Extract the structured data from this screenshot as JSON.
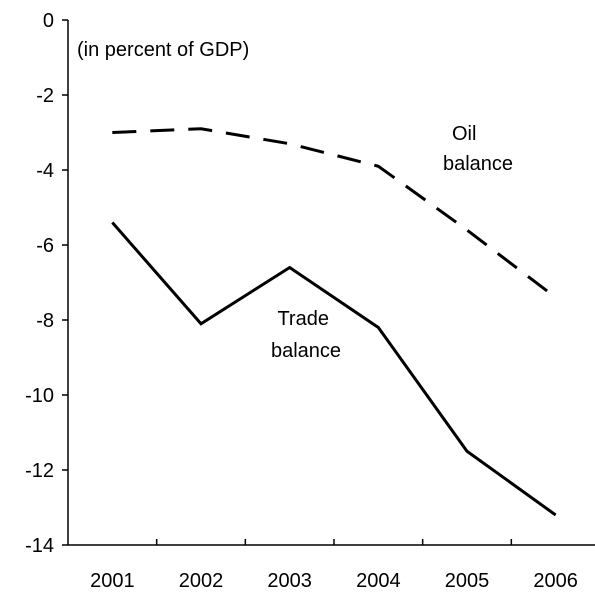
{
  "chart_data": {
    "type": "line",
    "title": "",
    "xlabel": "",
    "ylabel": "",
    "annotation": "(in percent of GDP)",
    "categories": [
      "2001",
      "2002",
      "2003",
      "2004",
      "2005",
      "2006"
    ],
    "ylim": [
      -14,
      0
    ],
    "yticks": [
      0,
      -2,
      -4,
      -6,
      -8,
      -10,
      -12,
      -14
    ],
    "ytick_labels": [
      "0",
      "-2",
      "-4",
      "-6",
      "-8",
      "-10",
      "-12",
      "-14"
    ],
    "grid": false,
    "series": [
      {
        "name": "Oil balance",
        "label_lines": [
          "Oil",
          "balance"
        ],
        "style": "dashed",
        "color": "#000000",
        "values": [
          -3.0,
          -2.9,
          -3.3,
          -3.9,
          -5.6,
          -7.4
        ]
      },
      {
        "name": "Trade balance",
        "label_lines": [
          "Trade",
          "balance"
        ],
        "style": "solid",
        "color": "#000000",
        "values": [
          -5.4,
          -8.1,
          -6.6,
          -8.2,
          -11.5,
          -13.2
        ]
      }
    ]
  }
}
